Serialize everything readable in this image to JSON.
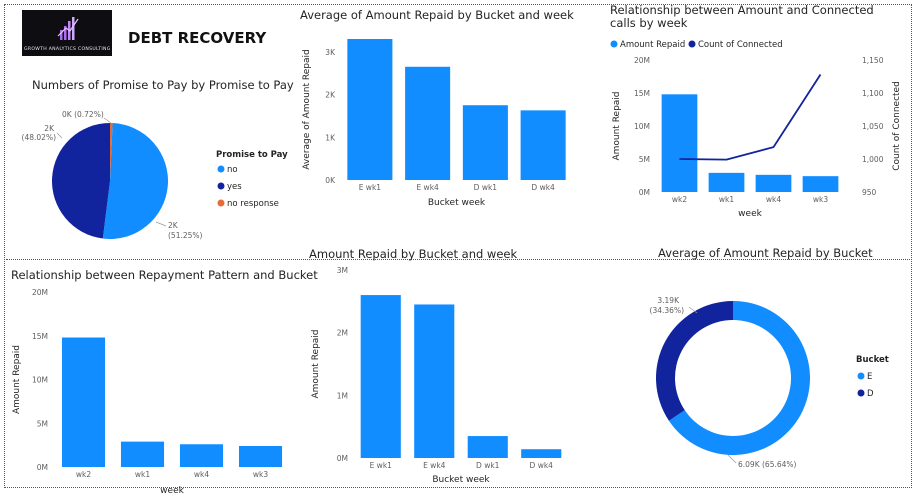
{
  "report": {
    "title": "DEBT RECOVERY",
    "logo_text": "GROWTH ANALYTICS CONSULTING"
  },
  "colors": {
    "light_blue": "#118DFF",
    "dark_blue": "#12239E",
    "orange": "#E66C37",
    "line": "#12239E"
  },
  "chart_data": [
    {
      "id": "pie",
      "type": "pie",
      "title": "Numbers of Promise to Pay by Promise to Pay",
      "legend_title": "Promise to Pay",
      "legend_position": "right",
      "slices": [
        {
          "name": "no",
          "value": 2000,
          "percent": 51.25,
          "label": "2K",
          "pct_label": "(51.25%)",
          "color": "#118DFF"
        },
        {
          "name": "yes",
          "value": 1900,
          "percent": 48.02,
          "label": "2K",
          "pct_label": "(48.02%)",
          "color": "#12239E"
        },
        {
          "name": "no response",
          "value": 28,
          "percent": 0.72,
          "label": "0K (0.72%)",
          "pct_label": "",
          "color": "#E66C37"
        }
      ]
    },
    {
      "id": "avg_bucket_week",
      "type": "bar",
      "title": "Average of Amount Repaid by Bucket and week",
      "xlabel": "Bucket week",
      "ylabel": "Average of Amount Repaid",
      "categories": [
        "E wk1",
        "E wk4",
        "D wk1",
        "D wk4"
      ],
      "values": [
        3300,
        2650,
        1750,
        1630
      ],
      "ylim": [
        0,
        3300
      ],
      "ticks": [
        0,
        1000,
        2000,
        3000
      ],
      "tick_labels": [
        "0K",
        "1K",
        "2K",
        "3K"
      ],
      "grid": false
    },
    {
      "id": "combo",
      "type": "bar",
      "title": "Relationship between Amount and Connected calls by week",
      "xlabel": "week",
      "ylabel": "Amount Repaid",
      "y2label": "Count of Connected",
      "categories": [
        "wk2",
        "wk1",
        "wk4",
        "wk3"
      ],
      "series": [
        {
          "name": "Amount Repaid",
          "values": [
            14800000,
            2900000,
            2600000,
            2400000
          ],
          "kind": "bar",
          "color": "#118DFF"
        },
        {
          "name": "Count of Connected",
          "values": [
            1000,
            999,
            1018,
            1128
          ],
          "kind": "line",
          "color": "#12239E"
        }
      ],
      "ylim": [
        0,
        20000000
      ],
      "ticks": [
        0,
        5000000,
        10000000,
        15000000,
        20000000
      ],
      "tick_labels": [
        "0M",
        "5M",
        "10M",
        "15M",
        "20M"
      ],
      "y2lim": [
        950,
        1150
      ],
      "y2ticks": [
        950,
        1000,
        1050,
        1100,
        1150
      ],
      "y2tick_labels": [
        "950",
        "1,000",
        "1,050",
        "1,100",
        "1,150"
      ],
      "legend_position": "top-left"
    },
    {
      "id": "repay_pattern",
      "type": "bar",
      "title": "Relationship between Repayment Pattern and Bucket",
      "xlabel": "week",
      "ylabel": "Amount Repaid",
      "categories": [
        "wk2",
        "wk1",
        "wk4",
        "wk3"
      ],
      "values": [
        14800000,
        2900000,
        2600000,
        2400000
      ],
      "ylim": [
        0,
        20000000
      ],
      "ticks": [
        0,
        5000000,
        10000000,
        15000000,
        20000000
      ],
      "tick_labels": [
        "0M",
        "5M",
        "10M",
        "15M",
        "20M"
      ]
    },
    {
      "id": "amount_bucket_week",
      "type": "bar",
      "title": "Amount Repaid by Bucket and week",
      "xlabel": "Bucket week",
      "ylabel": "Amount Repaid",
      "categories": [
        "E wk1",
        "E wk4",
        "D wk1",
        "D wk4"
      ],
      "values": [
        2600000,
        2450000,
        350000,
        140000
      ],
      "ylim": [
        0,
        3000000
      ],
      "ticks": [
        0,
        1000000,
        2000000,
        3000000
      ],
      "tick_labels": [
        "0M",
        "1M",
        "2M",
        "3M"
      ]
    },
    {
      "id": "donut",
      "type": "pie",
      "title": "Average of Amount Repaid by Bucket",
      "legend_title": "Bucket",
      "legend_position": "right",
      "slices": [
        {
          "name": "E",
          "value": 6090,
          "percent": 65.64,
          "label": "6.09K (65.64%)",
          "color": "#118DFF"
        },
        {
          "name": "D",
          "value": 3190,
          "percent": 34.36,
          "label": "3.19K",
          "pct_label": "(34.36%)",
          "color": "#12239E"
        }
      ]
    }
  ]
}
